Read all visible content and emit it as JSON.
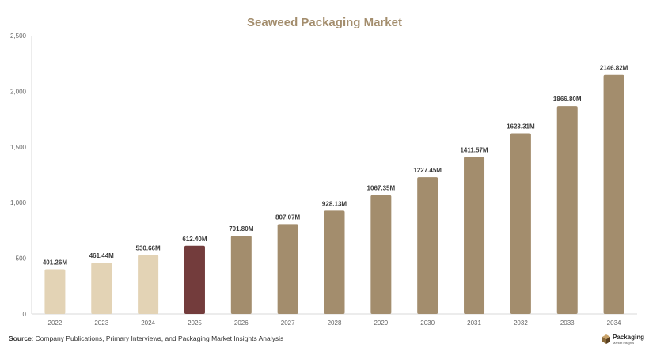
{
  "chart_data": {
    "type": "bar",
    "title": "Seaweed Packaging Market",
    "xlabel": "",
    "ylabel": "",
    "ylim": [
      0,
      2500
    ],
    "yticks": [
      0,
      500,
      1000,
      1500,
      2000,
      2500
    ],
    "ytick_labels": [
      "0",
      "500",
      "1,000",
      "1,500",
      "2,000",
      "2,500"
    ],
    "grid": false,
    "categories": [
      "2022",
      "2023",
      "2024",
      "2025",
      "2026",
      "2027",
      "2028",
      "2029",
      "2030",
      "2031",
      "2032",
      "2033",
      "2034"
    ],
    "values": [
      401.26,
      461.44,
      530.66,
      612.4,
      701.8,
      807.07,
      928.13,
      1067.35,
      1227.45,
      1411.57,
      1623.31,
      1866.8,
      2146.82
    ],
    "data_labels": [
      "401.26M",
      "461.44M",
      "530.66M",
      "612.40M",
      "701.80M",
      "807.07M",
      "928.13M",
      "1067.35M",
      "1227.45M",
      "1411.57M",
      "1623.31M",
      "1866.80M",
      "2146.82M"
    ],
    "bar_colors": [
      "#e3d3b5",
      "#e3d3b5",
      "#e3d3b5",
      "#733c3c",
      "#a38d6d",
      "#a38d6d",
      "#a38d6d",
      "#a38d6d",
      "#a38d6d",
      "#a38d6d",
      "#a38d6d",
      "#a38d6d",
      "#a38d6d"
    ]
  },
  "source": {
    "label": "Source",
    "text": ": Company Publications, Primary Interviews, and Packaging Market Insights Analysis"
  },
  "brand": {
    "name": "Packaging",
    "tagline": "Market Insights"
  },
  "colors": {
    "title": "#a38d6d",
    "axis_text": "#666666"
  }
}
